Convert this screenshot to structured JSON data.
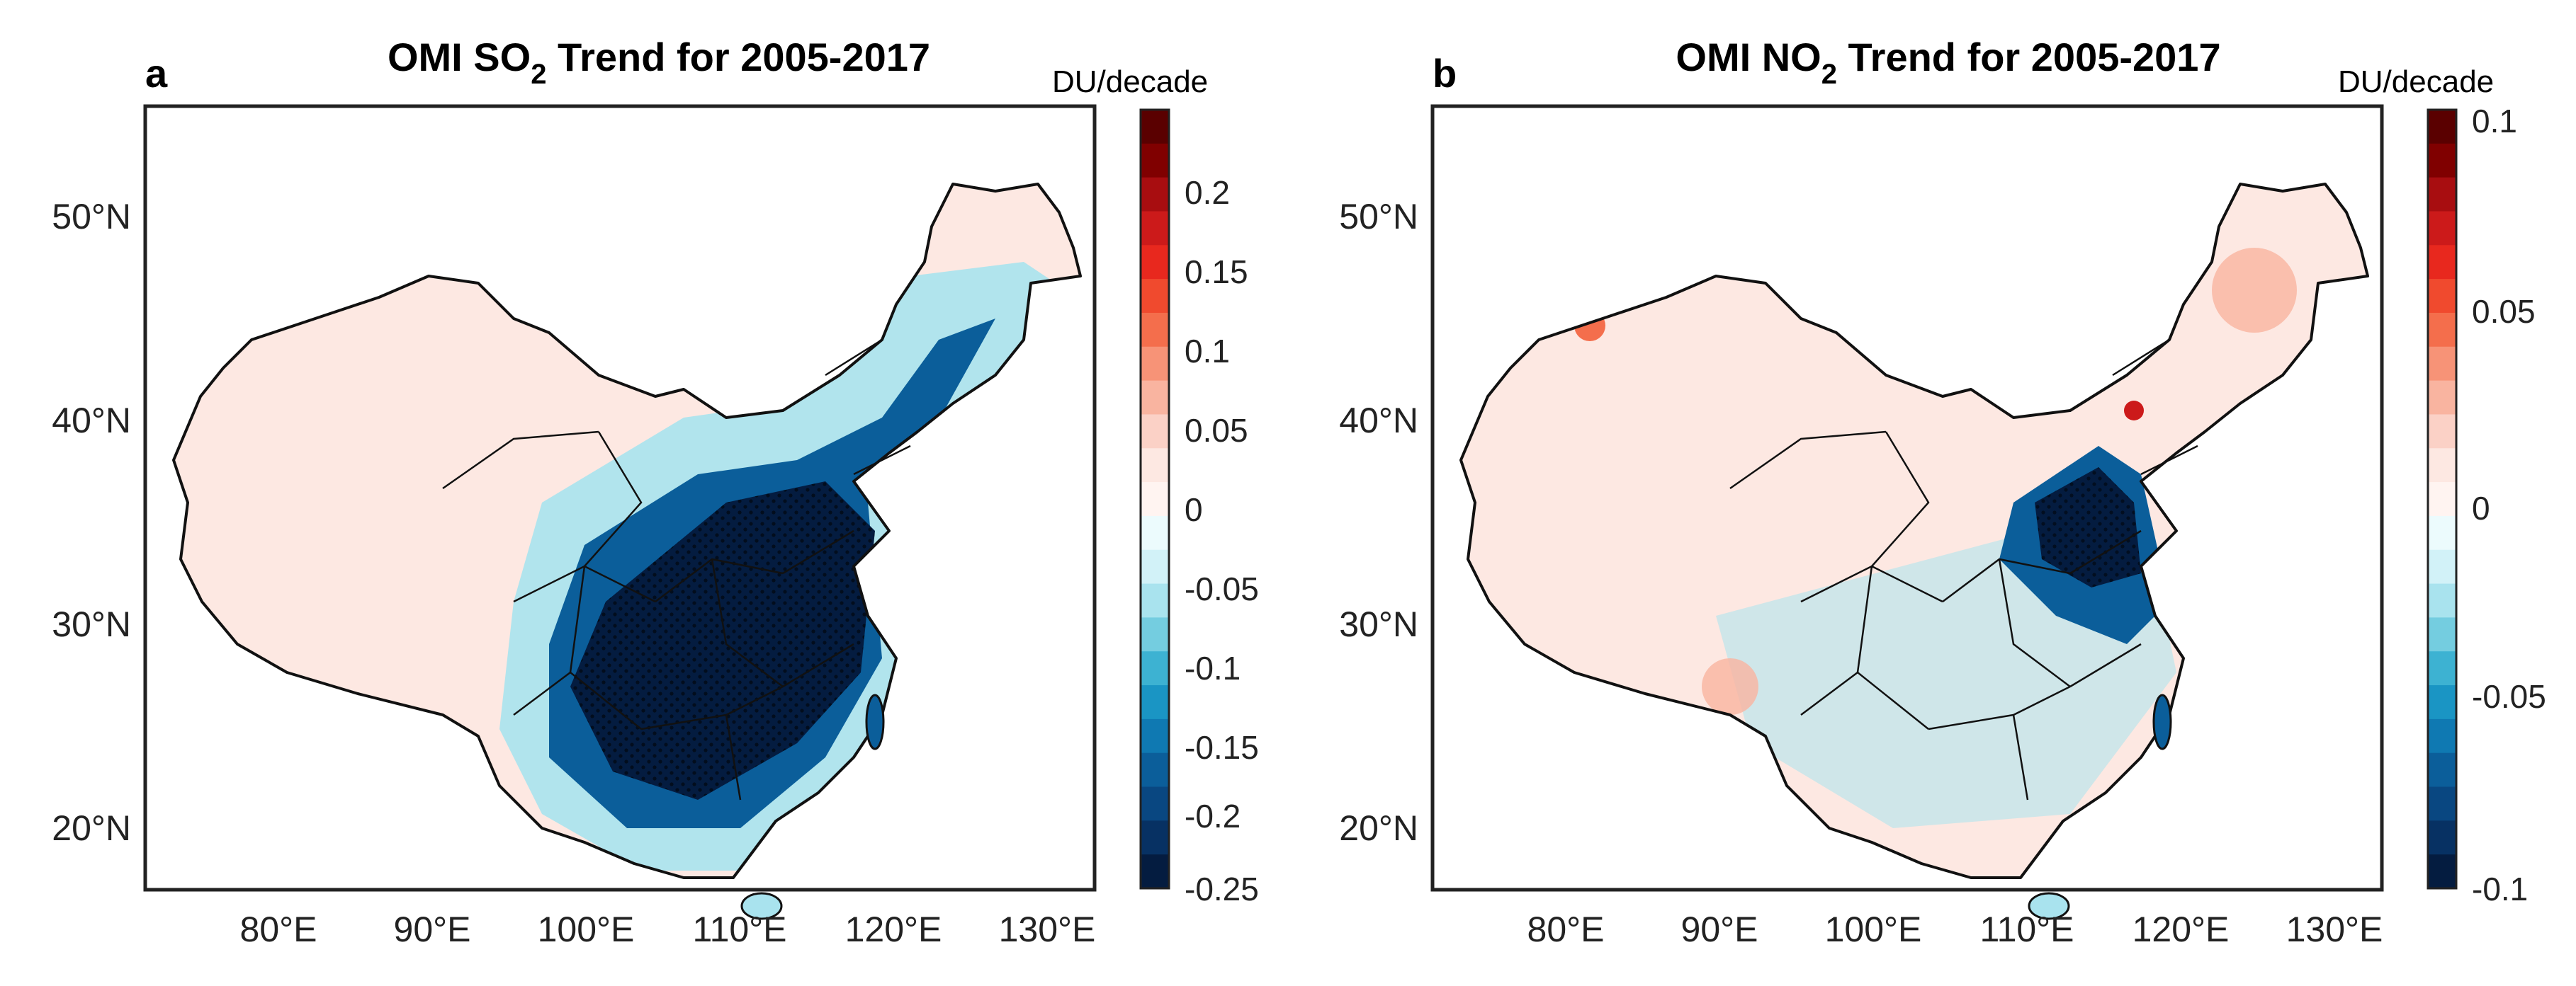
{
  "figure": {
    "panels": [
      {
        "id": "a",
        "letter": "a",
        "title_pre": "OMI SO",
        "title_sub": "2",
        "title_post": " Trend for 2005-2017",
        "unit": "DU/decade",
        "lat_ticks": [
          "50°N",
          "40°N",
          "30°N",
          "20°N"
        ],
        "lon_ticks": [
          "80°E",
          "90°E",
          "100°E",
          "110°E",
          "120°E",
          "130°E"
        ],
        "colorbar": {
          "ticks": [
            "0.2",
            "0.15",
            "0.1",
            "0.05",
            "0",
            "-0.05",
            "-0.1",
            "-0.15",
            "-0.2",
            "-0.25"
          ],
          "colors": [
            "#5a0000",
            "#800000",
            "#a80d10",
            "#cc1a1a",
            "#e8281e",
            "#f04a2e",
            "#f46e4c",
            "#f79377",
            "#f9b4a0",
            "#fbd1c6",
            "#fde8e2",
            "#fff4f1",
            "#ecfbfd",
            "#d2f2f8",
            "#a9e3ee",
            "#74cde0",
            "#3db2d2",
            "#1a95c4",
            "#0f79b2",
            "#0b5e9a",
            "#094781",
            "#073163",
            "#041c40"
          ]
        },
        "colors": {
          "high": "#041c40",
          "mid": "#0b5e9a",
          "low": "#a9e3ee",
          "bg": "#fde8e2"
        }
      },
      {
        "id": "b",
        "letter": "b",
        "title_pre": "OMI NO",
        "title_sub": "2",
        "title_post": " Trend for 2005-2017",
        "unit": "DU/decade",
        "lat_ticks": [
          "50°N",
          "40°N",
          "30°N",
          "20°N"
        ],
        "lon_ticks": [
          "80°E",
          "90°E",
          "100°E",
          "110°E",
          "120°E",
          "130°E"
        ],
        "colorbar": {
          "ticks": [
            "0.1",
            "0.05",
            "0",
            "-0.05",
            "-0.1"
          ],
          "colors": [
            "#5a0000",
            "#800000",
            "#a80d10",
            "#cc1a1a",
            "#e8281e",
            "#f04a2e",
            "#f46e4c",
            "#f79377",
            "#f9b4a0",
            "#fbd1c6",
            "#fde8e2",
            "#fff4f1",
            "#ecfbfd",
            "#d2f2f8",
            "#a9e3ee",
            "#74cde0",
            "#3db2d2",
            "#1a95c4",
            "#0f79b2",
            "#0b5e9a",
            "#094781",
            "#073163",
            "#041c40"
          ]
        },
        "colors": {
          "high": "#041c40",
          "mid": "#0b5e9a",
          "low": "#a9e3ee",
          "bg": "#fde8e2"
        }
      }
    ]
  }
}
